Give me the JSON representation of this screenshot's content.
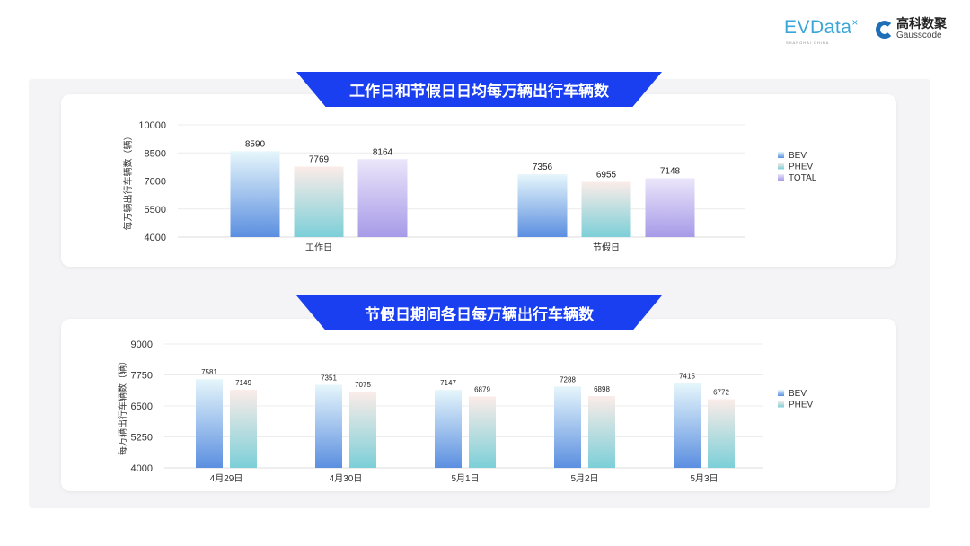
{
  "logos": {
    "evdata": "EVData",
    "evdata_sub": "SHANGHAI CHINA",
    "gauss_cn": "高科数聚",
    "gauss_en": "Gausscode"
  },
  "colors": {
    "banner": "#1a3ff0",
    "BEV": [
      "#e6f6fb",
      "#5b8fe0"
    ],
    "PHEV": [
      "#fbece8",
      "#7ccfd8"
    ],
    "TOTAL": [
      "#ebe6fa",
      "#a79ae8"
    ]
  },
  "chart_data": [
    {
      "type": "bar",
      "title": "工作日和节假日日均每万辆出行车辆数",
      "ylabel": "每万辆出行车辆数（辆）",
      "xlabel": "",
      "categories": [
        "工作日",
        "节假日"
      ],
      "ylim": [
        4000,
        10000
      ],
      "yticks": [
        4000,
        5500,
        7000,
        8500,
        10000
      ],
      "grid": true,
      "legend": "right",
      "series": [
        {
          "name": "BEV",
          "values": [
            8590,
            7356
          ]
        },
        {
          "name": "PHEV",
          "values": [
            7769,
            6955
          ]
        },
        {
          "name": "TOTAL",
          "values": [
            8164,
            7148
          ]
        }
      ]
    },
    {
      "type": "bar",
      "title": "节假日期间各日每万辆出行车辆数",
      "ylabel": "每万辆出行车辆数（辆）",
      "xlabel": "",
      "categories": [
        "4月29日",
        "4月30日",
        "5月1日",
        "5月2日",
        "5月3日"
      ],
      "ylim": [
        4000,
        9000
      ],
      "yticks": [
        4000,
        5250,
        6500,
        7750,
        9000
      ],
      "grid": true,
      "legend": "right",
      "series": [
        {
          "name": "BEV",
          "values": [
            7581,
            7351,
            7147,
            7288,
            7415
          ]
        },
        {
          "name": "PHEV",
          "values": [
            7149,
            7075,
            6879,
            6898,
            6772
          ]
        }
      ]
    }
  ]
}
